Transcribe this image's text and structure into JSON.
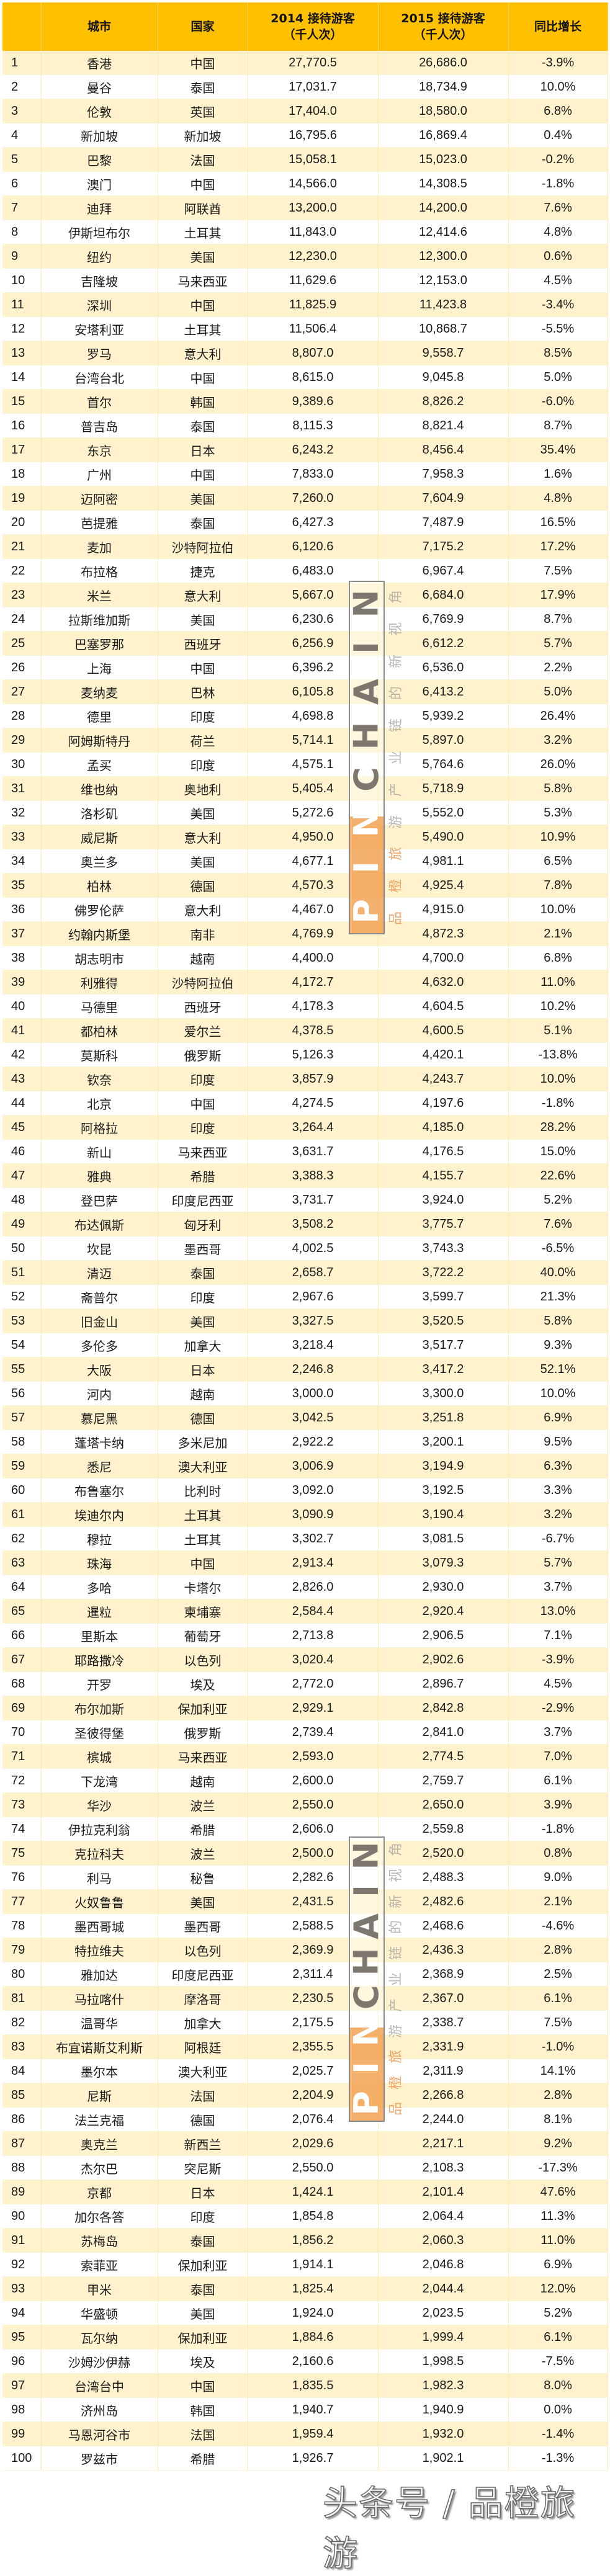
{
  "table": {
    "headers": {
      "rank": "",
      "city": "城市",
      "country": "国家",
      "visitors_2014_line1": "2014 接待游客",
      "visitors_2014_line2": "（千人次）",
      "visitors_2015_line1": "2015 接待游客",
      "visitors_2015_line2": "（千人次）",
      "growth": "同比增长"
    },
    "rows": [
      {
        "rank": "1",
        "city": "香港",
        "country": "中国",
        "v2014": "27,770.5",
        "v2015": "26,686.0",
        "growth": "-3.9%"
      },
      {
        "rank": "2",
        "city": "曼谷",
        "country": "泰国",
        "v2014": "17,031.7",
        "v2015": "18,734.9",
        "growth": "10.0%"
      },
      {
        "rank": "3",
        "city": "伦敦",
        "country": "英国",
        "v2014": "17,404.0",
        "v2015": "18,580.0",
        "growth": "6.8%"
      },
      {
        "rank": "4",
        "city": "新加坡",
        "country": "新加坡",
        "v2014": "16,795.6",
        "v2015": "16,869.4",
        "growth": "0.4%"
      },
      {
        "rank": "5",
        "city": "巴黎",
        "country": "法国",
        "v2014": "15,058.1",
        "v2015": "15,023.0",
        "growth": "-0.2%"
      },
      {
        "rank": "6",
        "city": "澳门",
        "country": "中国",
        "v2014": "14,566.0",
        "v2015": "14,308.5",
        "growth": "-1.8%"
      },
      {
        "rank": "7",
        "city": "迪拜",
        "country": "阿联酋",
        "v2014": "13,200.0",
        "v2015": "14,200.0",
        "growth": "7.6%"
      },
      {
        "rank": "8",
        "city": "伊斯坦布尔",
        "country": "土耳其",
        "v2014": "11,843.0",
        "v2015": "12,414.6",
        "growth": "4.8%"
      },
      {
        "rank": "9",
        "city": "纽约",
        "country": "美国",
        "v2014": "12,230.0",
        "v2015": "12,300.0",
        "growth": "0.6%"
      },
      {
        "rank": "10",
        "city": "吉隆坡",
        "country": "马来西亚",
        "v2014": "11,629.6",
        "v2015": "12,153.0",
        "growth": "4.5%"
      },
      {
        "rank": "11",
        "city": "深圳",
        "country": "中国",
        "v2014": "11,825.9",
        "v2015": "11,423.8",
        "growth": "-3.4%"
      },
      {
        "rank": "12",
        "city": "安塔利亚",
        "country": "土耳其",
        "v2014": "11,506.4",
        "v2015": "10,868.7",
        "growth": "-5.5%"
      },
      {
        "rank": "13",
        "city": "罗马",
        "country": "意大利",
        "v2014": "8,807.0",
        "v2015": "9,558.7",
        "growth": "8.5%"
      },
      {
        "rank": "14",
        "city": "台湾台北",
        "country": "中国",
        "v2014": "8,615.0",
        "v2015": "9,045.8",
        "growth": "5.0%"
      },
      {
        "rank": "15",
        "city": "首尔",
        "country": "韩国",
        "v2014": "9,389.6",
        "v2015": "8,826.2",
        "growth": "-6.0%"
      },
      {
        "rank": "16",
        "city": "普吉岛",
        "country": "泰国",
        "v2014": "8,115.3",
        "v2015": "8,821.4",
        "growth": "8.7%"
      },
      {
        "rank": "17",
        "city": "东京",
        "country": "日本",
        "v2014": "6,243.2",
        "v2015": "8,456.4",
        "growth": "35.4%"
      },
      {
        "rank": "18",
        "city": "广州",
        "country": "中国",
        "v2014": "7,833.0",
        "v2015": "7,958.3",
        "growth": "1.6%"
      },
      {
        "rank": "19",
        "city": "迈阿密",
        "country": "美国",
        "v2014": "7,260.0",
        "v2015": "7,604.9",
        "growth": "4.8%"
      },
      {
        "rank": "20",
        "city": "芭提雅",
        "country": "泰国",
        "v2014": "6,427.3",
        "v2015": "7,487.9",
        "growth": "16.5%"
      },
      {
        "rank": "21",
        "city": "麦加",
        "country": "沙特阿拉伯",
        "v2014": "6,120.6",
        "v2015": "7,175.2",
        "growth": "17.2%"
      },
      {
        "rank": "22",
        "city": "布拉格",
        "country": "捷克",
        "v2014": "6,483.0",
        "v2015": "6,967.4",
        "growth": "7.5%"
      },
      {
        "rank": "23",
        "city": "米兰",
        "country": "意大利",
        "v2014": "5,667.0",
        "v2015": "6,684.0",
        "growth": "17.9%"
      },
      {
        "rank": "24",
        "city": "拉斯维加斯",
        "country": "美国",
        "v2014": "6,230.6",
        "v2015": "6,769.9",
        "growth": "8.7%"
      },
      {
        "rank": "25",
        "city": "巴塞罗那",
        "country": "西班牙",
        "v2014": "6,256.9",
        "v2015": "6,612.2",
        "growth": "5.7%"
      },
      {
        "rank": "26",
        "city": "上海",
        "country": "中国",
        "v2014": "6,396.2",
        "v2015": "6,536.0",
        "growth": "2.2%"
      },
      {
        "rank": "27",
        "city": "麦纳麦",
        "country": "巴林",
        "v2014": "6,105.8",
        "v2015": "6,413.2",
        "growth": "5.0%"
      },
      {
        "rank": "28",
        "city": "德里",
        "country": "印度",
        "v2014": "4,698.8",
        "v2015": "5,939.2",
        "growth": "26.4%"
      },
      {
        "rank": "29",
        "city": "阿姆斯特丹",
        "country": "荷兰",
        "v2014": "5,714.1",
        "v2015": "5,897.0",
        "growth": "3.2%"
      },
      {
        "rank": "30",
        "city": "孟买",
        "country": "印度",
        "v2014": "4,575.1",
        "v2015": "5,764.6",
        "growth": "26.0%"
      },
      {
        "rank": "31",
        "city": "维也纳",
        "country": "奥地利",
        "v2014": "5,405.4",
        "v2015": "5,718.9",
        "growth": "5.8%"
      },
      {
        "rank": "32",
        "city": "洛杉矶",
        "country": "美国",
        "v2014": "5,272.6",
        "v2015": "5,552.0",
        "growth": "5.3%"
      },
      {
        "rank": "33",
        "city": "威尼斯",
        "country": "意大利",
        "v2014": "4,950.0",
        "v2015": "5,490.0",
        "growth": "10.9%"
      },
      {
        "rank": "34",
        "city": "奥兰多",
        "country": "美国",
        "v2014": "4,677.1",
        "v2015": "4,981.1",
        "growth": "6.5%"
      },
      {
        "rank": "35",
        "city": "柏林",
        "country": "德国",
        "v2014": "4,570.3",
        "v2015": "4,925.4",
        "growth": "7.8%"
      },
      {
        "rank": "36",
        "city": "佛罗伦萨",
        "country": "意大利",
        "v2014": "4,467.0",
        "v2015": "4,915.0",
        "growth": "10.0%"
      },
      {
        "rank": "37",
        "city": "约翰内斯堡",
        "country": "南非",
        "v2014": "4,769.9",
        "v2015": "4,872.3",
        "growth": "2.1%"
      },
      {
        "rank": "38",
        "city": "胡志明市",
        "country": "越南",
        "v2014": "4,400.0",
        "v2015": "4,700.0",
        "growth": "6.8%"
      },
      {
        "rank": "39",
        "city": "利雅得",
        "country": "沙特阿拉伯",
        "v2014": "4,172.7",
        "v2015": "4,632.0",
        "growth": "11.0%"
      },
      {
        "rank": "40",
        "city": "马德里",
        "country": "西班牙",
        "v2014": "4,178.3",
        "v2015": "4,604.5",
        "growth": "10.2%"
      },
      {
        "rank": "41",
        "city": "都柏林",
        "country": "爱尔兰",
        "v2014": "4,378.5",
        "v2015": "4,600.5",
        "growth": "5.1%"
      },
      {
        "rank": "42",
        "city": "莫斯科",
        "country": "俄罗斯",
        "v2014": "5,126.3",
        "v2015": "4,420.1",
        "growth": "-13.8%"
      },
      {
        "rank": "43",
        "city": "钦奈",
        "country": "印度",
        "v2014": "3,857.9",
        "v2015": "4,243.7",
        "growth": "10.0%"
      },
      {
        "rank": "44",
        "city": "北京",
        "country": "中国",
        "v2014": "4,274.5",
        "v2015": "4,197.6",
        "growth": "-1.8%"
      },
      {
        "rank": "45",
        "city": "阿格拉",
        "country": "印度",
        "v2014": "3,264.4",
        "v2015": "4,185.0",
        "growth": "28.2%"
      },
      {
        "rank": "46",
        "city": "新山",
        "country": "马来西亚",
        "v2014": "3,631.7",
        "v2015": "4,176.5",
        "growth": "15.0%"
      },
      {
        "rank": "47",
        "city": "雅典",
        "country": "希腊",
        "v2014": "3,388.3",
        "v2015": "4,155.7",
        "growth": "22.6%"
      },
      {
        "rank": "48",
        "city": "登巴萨",
        "country": "印度尼西亚",
        "v2014": "3,731.7",
        "v2015": "3,924.0",
        "growth": "5.2%"
      },
      {
        "rank": "49",
        "city": "布达佩斯",
        "country": "匈牙利",
        "v2014": "3,508.2",
        "v2015": "3,775.7",
        "growth": "7.6%"
      },
      {
        "rank": "50",
        "city": "坎昆",
        "country": "墨西哥",
        "v2014": "4,002.5",
        "v2015": "3,743.3",
        "growth": "-6.5%"
      },
      {
        "rank": "51",
        "city": "清迈",
        "country": "泰国",
        "v2014": "2,658.7",
        "v2015": "3,722.2",
        "growth": "40.0%"
      },
      {
        "rank": "52",
        "city": "斋普尔",
        "country": "印度",
        "v2014": "2,967.6",
        "v2015": "3,599.7",
        "growth": "21.3%"
      },
      {
        "rank": "53",
        "city": "旧金山",
        "country": "美国",
        "v2014": "3,327.5",
        "v2015": "3,520.5",
        "growth": "5.8%"
      },
      {
        "rank": "54",
        "city": "多伦多",
        "country": "加拿大",
        "v2014": "3,218.4",
        "v2015": "3,517.7",
        "growth": "9.3%"
      },
      {
        "rank": "55",
        "city": "大阪",
        "country": "日本",
        "v2014": "2,246.8",
        "v2015": "3,417.2",
        "growth": "52.1%"
      },
      {
        "rank": "56",
        "city": "河内",
        "country": "越南",
        "v2014": "3,000.0",
        "v2015": "3,300.0",
        "growth": "10.0%"
      },
      {
        "rank": "57",
        "city": "慕尼黑",
        "country": "德国",
        "v2014": "3,042.5",
        "v2015": "3,251.8",
        "growth": "6.9%"
      },
      {
        "rank": "58",
        "city": "蓬塔卡纳",
        "country": "多米尼加",
        "v2014": "2,922.2",
        "v2015": "3,200.1",
        "growth": "9.5%"
      },
      {
        "rank": "59",
        "city": "悉尼",
        "country": "澳大利亚",
        "v2014": "3,006.9",
        "v2015": "3,194.9",
        "growth": "6.3%"
      },
      {
        "rank": "60",
        "city": "布鲁塞尔",
        "country": "比利时",
        "v2014": "3,092.0",
        "v2015": "3,192.5",
        "growth": "3.3%"
      },
      {
        "rank": "61",
        "city": "埃迪尔内",
        "country": "土耳其",
        "v2014": "3,090.9",
        "v2015": "3,190.4",
        "growth": "3.2%"
      },
      {
        "rank": "62",
        "city": "穆拉",
        "country": "土耳其",
        "v2014": "3,302.7",
        "v2015": "3,081.5",
        "growth": "-6.7%"
      },
      {
        "rank": "63",
        "city": "珠海",
        "country": "中国",
        "v2014": "2,913.4",
        "v2015": "3,079.3",
        "growth": "5.7%"
      },
      {
        "rank": "64",
        "city": "多哈",
        "country": "卡塔尔",
        "v2014": "2,826.0",
        "v2015": "2,930.0",
        "growth": "3.7%"
      },
      {
        "rank": "65",
        "city": "暹粒",
        "country": "柬埔寨",
        "v2014": "2,584.4",
        "v2015": "2,920.4",
        "growth": "13.0%"
      },
      {
        "rank": "66",
        "city": "里斯本",
        "country": "葡萄牙",
        "v2014": "2,713.8",
        "v2015": "2,906.5",
        "growth": "7.1%"
      },
      {
        "rank": "67",
        "city": "耶路撒冷",
        "country": "以色列",
        "v2014": "3,020.4",
        "v2015": "2,902.6",
        "growth": "-3.9%"
      },
      {
        "rank": "68",
        "city": "开罗",
        "country": "埃及",
        "v2014": "2,772.0",
        "v2015": "2,896.7",
        "growth": "4.5%"
      },
      {
        "rank": "69",
        "city": "布尔加斯",
        "country": "保加利亚",
        "v2014": "2,929.1",
        "v2015": "2,842.8",
        "growth": "-2.9%"
      },
      {
        "rank": "70",
        "city": "圣彼得堡",
        "country": "俄罗斯",
        "v2014": "2,739.4",
        "v2015": "2,841.0",
        "growth": "3.7%"
      },
      {
        "rank": "71",
        "city": "槟城",
        "country": "马来西亚",
        "v2014": "2,593.0",
        "v2015": "2,774.5",
        "growth": "7.0%"
      },
      {
        "rank": "72",
        "city": "下龙湾",
        "country": "越南",
        "v2014": "2,600.0",
        "v2015": "2,759.7",
        "growth": "6.1%"
      },
      {
        "rank": "73",
        "city": "华沙",
        "country": "波兰",
        "v2014": "2,550.0",
        "v2015": "2,650.0",
        "growth": "3.9%"
      },
      {
        "rank": "74",
        "city": "伊拉克利翁",
        "country": "希腊",
        "v2014": "2,606.0",
        "v2015": "2,559.8",
        "growth": "-1.8%"
      },
      {
        "rank": "75",
        "city": "克拉科夫",
        "country": "波兰",
        "v2014": "2,500.0",
        "v2015": "2,520.0",
        "growth": "0.8%"
      },
      {
        "rank": "76",
        "city": "利马",
        "country": "秘鲁",
        "v2014": "2,282.6",
        "v2015": "2,488.3",
        "growth": "9.0%"
      },
      {
        "rank": "77",
        "city": "火奴鲁鲁",
        "country": "美国",
        "v2014": "2,431.5",
        "v2015": "2,482.6",
        "growth": "2.1%"
      },
      {
        "rank": "78",
        "city": "墨西哥城",
        "country": "墨西哥",
        "v2014": "2,588.5",
        "v2015": "2,468.6",
        "growth": "-4.6%"
      },
      {
        "rank": "79",
        "city": "特拉维夫",
        "country": "以色列",
        "v2014": "2,369.9",
        "v2015": "2,436.3",
        "growth": "2.8%"
      },
      {
        "rank": "80",
        "city": "雅加达",
        "country": "印度尼西亚",
        "v2014": "2,311.4",
        "v2015": "2,368.9",
        "growth": "2.5%"
      },
      {
        "rank": "81",
        "city": "马拉喀什",
        "country": "摩洛哥",
        "v2014": "2,230.5",
        "v2015": "2,367.0",
        "growth": "6.1%"
      },
      {
        "rank": "82",
        "city": "温哥华",
        "country": "加拿大",
        "v2014": "2,175.5",
        "v2015": "2,338.7",
        "growth": "7.5%"
      },
      {
        "rank": "83",
        "city": "布宜诺斯艾利斯",
        "country": "阿根廷",
        "v2014": "2,355.5",
        "v2015": "2,331.9",
        "growth": "-1.0%"
      },
      {
        "rank": "84",
        "city": "墨尔本",
        "country": "澳大利亚",
        "v2014": "2,025.7",
        "v2015": "2,311.9",
        "growth": "14.1%"
      },
      {
        "rank": "85",
        "city": "尼斯",
        "country": "法国",
        "v2014": "2,204.9",
        "v2015": "2,266.8",
        "growth": "2.8%"
      },
      {
        "rank": "86",
        "city": "法兰克福",
        "country": "德国",
        "v2014": "2,076.4",
        "v2015": "2,244.0",
        "growth": "8.1%"
      },
      {
        "rank": "87",
        "city": "奥克兰",
        "country": "新西兰",
        "v2014": "2,029.6",
        "v2015": "2,217.1",
        "growth": "9.2%"
      },
      {
        "rank": "88",
        "city": "杰尔巴",
        "country": "突尼斯",
        "v2014": "2,550.0",
        "v2015": "2,108.3",
        "growth": "-17.3%"
      },
      {
        "rank": "89",
        "city": "京都",
        "country": "日本",
        "v2014": "1,424.1",
        "v2015": "2,101.4",
        "growth": "47.6%"
      },
      {
        "rank": "90",
        "city": "加尔各答",
        "country": "印度",
        "v2014": "1,854.8",
        "v2015": "2,064.4",
        "growth": "11.3%"
      },
      {
        "rank": "91",
        "city": "苏梅岛",
        "country": "泰国",
        "v2014": "1,856.2",
        "v2015": "2,060.3",
        "growth": "11.0%"
      },
      {
        "rank": "92",
        "city": "索菲亚",
        "country": "保加利亚",
        "v2014": "1,914.1",
        "v2015": "2,046.8",
        "growth": "6.9%"
      },
      {
        "rank": "93",
        "city": "甲米",
        "country": "泰国",
        "v2014": "1,825.4",
        "v2015": "2,044.4",
        "growth": "12.0%"
      },
      {
        "rank": "94",
        "city": "华盛顿",
        "country": "美国",
        "v2014": "1,924.0",
        "v2015": "2,023.5",
        "growth": "5.2%"
      },
      {
        "rank": "95",
        "city": "瓦尔纳",
        "country": "保加利亚",
        "v2014": "1,884.6",
        "v2015": "1,999.4",
        "growth": "6.1%"
      },
      {
        "rank": "96",
        "city": "沙姆沙伊赫",
        "country": "埃及",
        "v2014": "2,160.6",
        "v2015": "1,998.5",
        "growth": "-7.5%"
      },
      {
        "rank": "97",
        "city": "台湾台中",
        "country": "中国",
        "v2014": "1,835.5",
        "v2015": "1,982.3",
        "growth": "8.0%"
      },
      {
        "rank": "98",
        "city": "济州岛",
        "country": "韩国",
        "v2014": "1,940.7",
        "v2015": "1,940.9",
        "growth": "0.0%"
      },
      {
        "rank": "99",
        "city": "马恩河谷市",
        "country": "法国",
        "v2014": "1,959.4",
        "v2015": "1,932.0",
        "growth": "-1.4%"
      },
      {
        "rank": "100",
        "city": "罗兹市",
        "country": "希腊",
        "v2014": "1,926.7",
        "v2015": "1,902.1",
        "growth": "-1.3%"
      }
    ]
  },
  "watermarks": {
    "logo_letters": [
      "P",
      "I",
      "N",
      "C",
      "H",
      "A",
      "I",
      "N"
    ],
    "logo_text_cn": [
      "品",
      "橙",
      "旅",
      "游",
      "产",
      "业",
      "链",
      "的",
      "新",
      "视",
      "角"
    ],
    "footer": "头条号 / 品橙旅游"
  },
  "colors": {
    "header_bg": "#ffc000",
    "odd_row_bg": "#fff2cc",
    "even_row_bg": "#ffffff",
    "logo_orange": "#f0963c",
    "logo_gray": "#7d7770"
  }
}
